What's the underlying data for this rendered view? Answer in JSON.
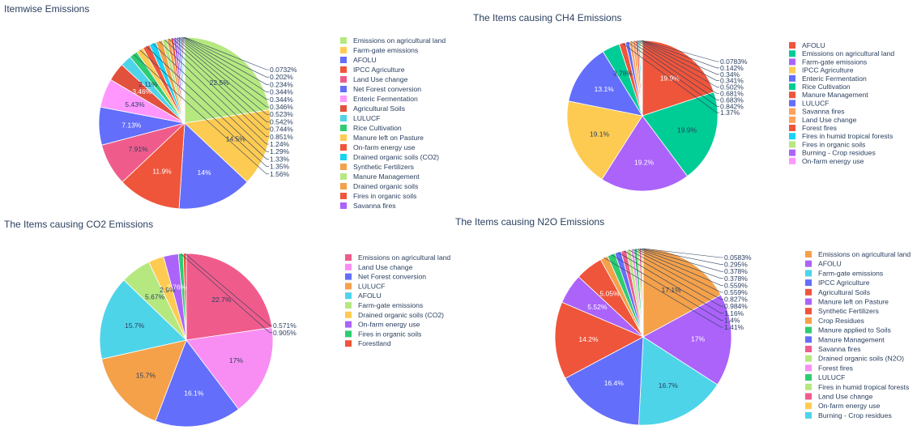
{
  "chart_data": [
    {
      "type": "pie",
      "title": "Itemwise Emissions",
      "legend_position": "right",
      "show_slice_labels_inside": true,
      "slices": [
        {
          "label": "Emissions on agricultural land",
          "value": 22.5,
          "color": "#b6e880"
        },
        {
          "label": "Farm-gate emissions",
          "value": 14.5,
          "color": "#fecb52"
        },
        {
          "label": "AFOLU",
          "value": 14,
          "color": "#636efa"
        },
        {
          "label": "IPCC Agriculture",
          "value": 11.9,
          "color": "#ef553b"
        },
        {
          "label": "Land Use change",
          "value": 7.91,
          "color": "#ef5c8b"
        },
        {
          "label": "Net Forest conversion",
          "value": 7.13,
          "color": "#636efa"
        },
        {
          "label": "Enteric Fermentation",
          "value": 5.43,
          "color": "#ff97ff"
        },
        {
          "label": "Agricultural Soils",
          "value": 3.46,
          "color": "#e2513c"
        },
        {
          "label": "LULUCF",
          "value": 2.11,
          "color": "#4ed4e9"
        },
        {
          "label": "Rice Cultivation",
          "value": 1.56,
          "color": "#2ecc71"
        },
        {
          "label": "Manure left on Pasture",
          "value": 1.35,
          "color": "#fecb52"
        },
        {
          "label": "On-farm energy use",
          "value": 1.33,
          "color": "#ef553b"
        },
        {
          "label": "Drained organic soils (CO2)",
          "value": 1.29,
          "color": "#19d3f3"
        },
        {
          "label": "Synthetic Fertilizers",
          "value": 1.24,
          "color": "#f4a14a"
        },
        {
          "label": "Manure Management",
          "value": 0.851,
          "color": "#b6e880"
        },
        {
          "label": "Drained organic soils",
          "value": 0.744,
          "color": "#f4a14a"
        },
        {
          "label": "Fires in organic soils",
          "value": 0.542,
          "color": "#ef553b"
        },
        {
          "label": "Savanna fires",
          "value": 0.523,
          "color": "#ab63fa"
        },
        {
          "label": "",
          "value": 0.346,
          "color": "#ab63fa"
        },
        {
          "label": "",
          "value": 0.344,
          "color": "#636efa"
        },
        {
          "label": "",
          "value": 0.344,
          "color": "#4ed4e9"
        },
        {
          "label": "",
          "value": 0.234,
          "color": "#ef5c8b"
        },
        {
          "label": "",
          "value": 0.202,
          "color": "#00cc96"
        },
        {
          "label": "",
          "value": 0.0732,
          "color": "#fecb52"
        }
      ],
      "outside_labels": [
        "0.0732%",
        "0.202%",
        "0.234%",
        "0.344%",
        "0.344%",
        "0.346%",
        "0.523%",
        "0.542%",
        "0.744%",
        "0.851%",
        "1.24%",
        "1.29%",
        "1.33%",
        "1.35%",
        "1.56%"
      ],
      "inside_labels": [
        "22.5%",
        "14.5%",
        "14%",
        "11.9%",
        "7.91%",
        "7.13%",
        "5.43%",
        "3.46%",
        "2.11%"
      ]
    },
    {
      "type": "pie",
      "title": "The Items causing CH4 Emissions",
      "legend_position": "right",
      "slices": [
        {
          "label": "AFOLU",
          "value": 19.9,
          "color": "#ef553b"
        },
        {
          "label": "Emissions on agricultural land",
          "value": 19.9,
          "color": "#00cc96"
        },
        {
          "label": "Farm-gate emissions",
          "value": 19.2,
          "color": "#ab63fa"
        },
        {
          "label": "IPCC Agriculture",
          "value": 19.1,
          "color": "#fecb52"
        },
        {
          "label": "Enteric Fermentation",
          "value": 13.1,
          "color": "#636efa"
        },
        {
          "label": "Rice Cultivation",
          "value": 3.78,
          "color": "#00cc96"
        },
        {
          "label": "Manure Management",
          "value": 1.37,
          "color": "#ef553b"
        },
        {
          "label": "LULUCF",
          "value": 0.842,
          "color": "#636efa"
        },
        {
          "label": "Savanna fires",
          "value": 0.683,
          "color": "#ffa15a"
        },
        {
          "label": "Land Use change",
          "value": 0.681,
          "color": "#ffa15a"
        },
        {
          "label": "Forest fires",
          "value": 0.502,
          "color": "#ef553b"
        },
        {
          "label": "Fires in humid tropical forests",
          "value": 0.341,
          "color": "#19d3f3"
        },
        {
          "label": "Fires in organic soils",
          "value": 0.34,
          "color": "#b6e880"
        },
        {
          "label": "Burning - Crop residues",
          "value": 0.142,
          "color": "#ab63fa"
        },
        {
          "label": "On-farm energy use",
          "value": 0.0783,
          "color": "#ff97ff"
        }
      ],
      "outside_labels": [
        "0.0783%",
        "0.142%",
        "0.34%",
        "0.341%",
        "0.502%",
        "0.681%",
        "0.683%",
        "0.842%",
        "1.37%"
      ],
      "inside_labels": [
        "19.9%",
        "19.9%",
        "19.2%",
        "19.1%",
        "13.1%",
        "3.78%"
      ]
    },
    {
      "type": "pie",
      "title": "The Items causing CO2 Emissions",
      "legend_position": "right",
      "slices": [
        {
          "label": "Emissions on agricultural land",
          "value": 22.7,
          "color": "#ef5c8b"
        },
        {
          "label": "Land Use change",
          "value": 17,
          "color": "#f88ef3"
        },
        {
          "label": "Net Forest conversion",
          "value": 16.1,
          "color": "#636efa"
        },
        {
          "label": "LULUCF",
          "value": 15.7,
          "color": "#f4a14a"
        },
        {
          "label": "AFOLU",
          "value": 15.7,
          "color": "#4ed4e9"
        },
        {
          "label": "Farm-gate emissions",
          "value": 5.67,
          "color": "#b6e880"
        },
        {
          "label": "Drained organic soils (CO2)",
          "value": 2.9,
          "color": "#fecb52"
        },
        {
          "label": "On-farm energy use",
          "value": 2.76,
          "color": "#ab63fa"
        },
        {
          "label": "Fires in organic soils",
          "value": 0.905,
          "color": "#2ecc71"
        },
        {
          "label": "Forestland",
          "value": 0.571,
          "color": "#ef553b"
        }
      ],
      "outside_labels": [
        "0.571%",
        "0.905%"
      ],
      "inside_labels": [
        "22.7%",
        "17%",
        "16.1%",
        "15.7%",
        "15.7%",
        "5.67%",
        "2.9%",
        "2.76%"
      ]
    },
    {
      "type": "pie",
      "title": "The Items causing N2O Emissions",
      "legend_position": "right",
      "slices": [
        {
          "label": "Emissions on agricultural land",
          "value": 17.1,
          "color": "#f4a14a"
        },
        {
          "label": "AFOLU",
          "value": 17,
          "color": "#ab63fa"
        },
        {
          "label": "Farm-gate emissions",
          "value": 16.7,
          "color": "#4ed4e9"
        },
        {
          "label": "IPCC Agriculture",
          "value": 16.4,
          "color": "#636efa"
        },
        {
          "label": "Agricultural Soils",
          "value": 14.2,
          "color": "#ef553b"
        },
        {
          "label": "Manure left on Pasture",
          "value": 5.52,
          "color": "#ab63fa"
        },
        {
          "label": "Synthetic Fertilizers",
          "value": 5.05,
          "color": "#ef553b"
        },
        {
          "label": "Crop Residues",
          "value": 1.41,
          "color": "#f4a14a"
        },
        {
          "label": "Manure applied to Soils",
          "value": 1.4,
          "color": "#2ecc71"
        },
        {
          "label": "Manure Management",
          "value": 1.16,
          "color": "#636efa"
        },
        {
          "label": "Savanna fires",
          "value": 0.984,
          "color": "#ef5c8b"
        },
        {
          "label": "Drained organic soils (N2O)",
          "value": 0.827,
          "color": "#b6e880"
        },
        {
          "label": "Forest fires",
          "value": 0.559,
          "color": "#f88ef3"
        },
        {
          "label": "LULUCF",
          "value": 0.559,
          "color": "#2ecc71"
        },
        {
          "label": "Fires in humid tropical forests",
          "value": 0.378,
          "color": "#b6e880"
        },
        {
          "label": "Land Use change",
          "value": 0.378,
          "color": "#ef5c8b"
        },
        {
          "label": "On-farm energy use",
          "value": 0.295,
          "color": "#fecb52"
        },
        {
          "label": "Burning - Crop residues",
          "value": 0.0583,
          "color": "#4ed4e9"
        }
      ],
      "outside_labels": [
        "0.0583%",
        "0.295%",
        "0.378%",
        "0.378%",
        "0.559%",
        "0.559%",
        "0.827%",
        "0.984%",
        "1.16%",
        "1.4%",
        "1.41%"
      ],
      "inside_labels": [
        "17.1%",
        "17%",
        "16.7%",
        "16.4%",
        "14.2%",
        "5.52%",
        "5.05%"
      ]
    }
  ]
}
